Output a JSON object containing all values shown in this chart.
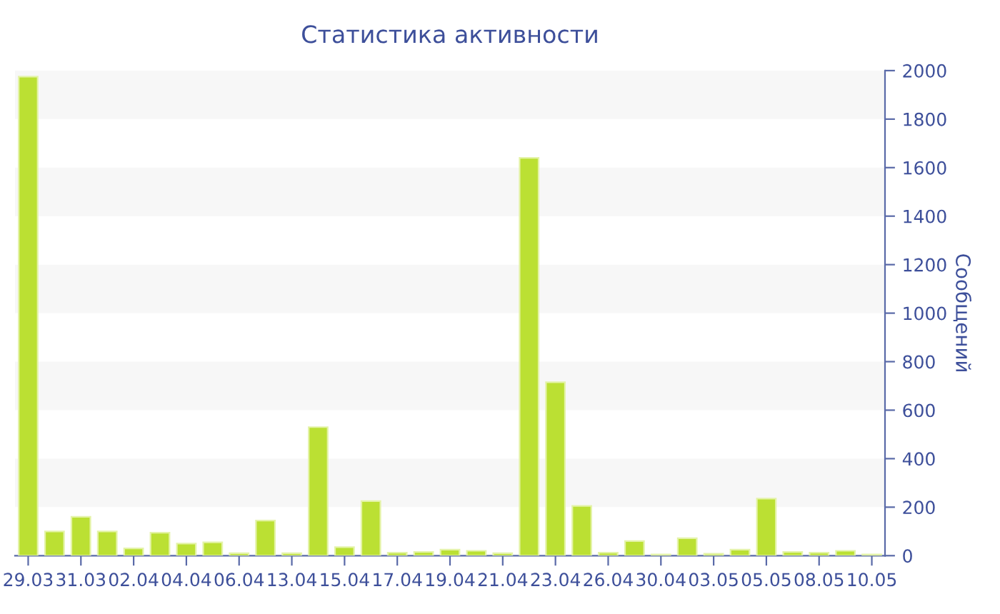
{
  "chart_data": {
    "type": "bar",
    "title": "Статистика активности",
    "ylabel": "Сообщений",
    "categories": [
      "29.03",
      null,
      "31.03",
      null,
      "02.04",
      null,
      "04.04",
      null,
      "06.04",
      null,
      "13.04",
      null,
      "15.04",
      null,
      "17.04",
      null,
      "19.04",
      null,
      "21.04",
      null,
      "23.04",
      null,
      "26.04",
      null,
      "30.04",
      null,
      "03.05",
      null,
      "05.05",
      null,
      "08.05",
      null,
      "10.05"
    ],
    "values": [
      1975,
      100,
      160,
      100,
      30,
      95,
      50,
      55,
      10,
      145,
      10,
      530,
      35,
      225,
      12,
      15,
      25,
      20,
      10,
      1640,
      715,
      205,
      12,
      60,
      5,
      72,
      8,
      25,
      235,
      15,
      12,
      20,
      5
    ],
    "color": "#bbe033",
    "ylim": [
      0,
      2000
    ],
    "yticks": [
      0,
      200,
      400,
      600,
      800,
      1000,
      1200,
      1400,
      1600,
      1800,
      2000
    ],
    "bands": [
      {
        "axis": "y",
        "from": 200,
        "to": 400,
        "color": "#f7f7f7"
      },
      {
        "axis": "y",
        "from": 600,
        "to": 800,
        "color": "#f7f7f7"
      },
      {
        "axis": "y",
        "from": 1000,
        "to": 1200,
        "color": "#f7f7f7"
      },
      {
        "axis": "y",
        "from": 1400,
        "to": 1600,
        "color": "#f7f7f7"
      },
      {
        "axis": "y",
        "from": 1800,
        "to": 2000,
        "color": "#f7f7f7"
      }
    ],
    "legend": false
  }
}
